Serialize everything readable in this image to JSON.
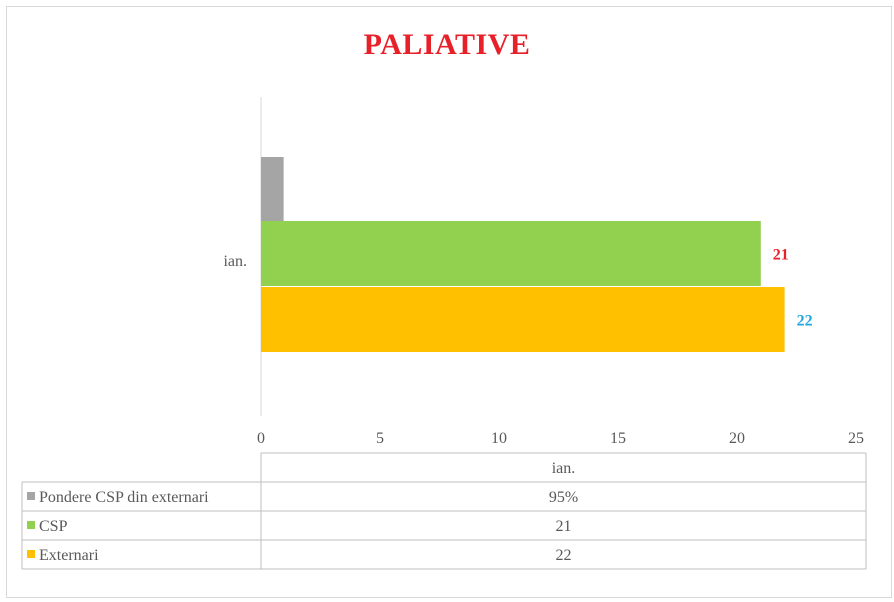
{
  "chart_data": {
    "type": "bar",
    "orientation": "horizontal",
    "title": "PALIATIVE",
    "title_color": "#e8202a",
    "categories": [
      "ian."
    ],
    "xlim": [
      0,
      25
    ],
    "xticks": [
      "0",
      "5",
      "10",
      "15",
      "20",
      "25"
    ],
    "series": [
      {
        "name": "Pondere CSP din externari",
        "values": [
          0.95
        ],
        "display": [
          "95%"
        ],
        "color": "#a5a5a5",
        "data_label": ""
      },
      {
        "name": "CSP",
        "values": [
          21
        ],
        "display": [
          "21"
        ],
        "color": "#92d050",
        "data_label": "21",
        "label_color": "#e8202a"
      },
      {
        "name": "Externari",
        "values": [
          22
        ],
        "display": [
          "22"
        ],
        "color": "#ffc000",
        "data_label": "22",
        "label_color": "#1fa7e0"
      }
    ],
    "legend": "data-table-below",
    "grid": false
  }
}
